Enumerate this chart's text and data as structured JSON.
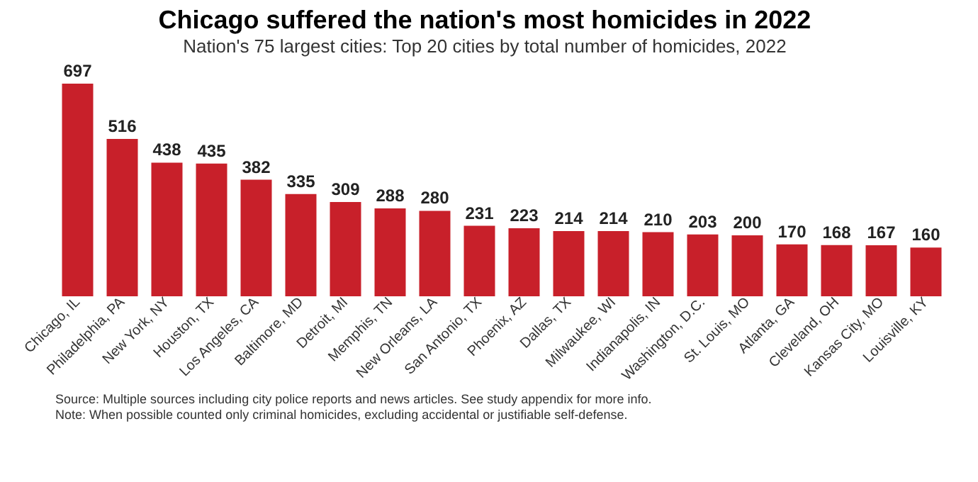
{
  "chart_data": {
    "type": "bar",
    "title": "Chicago suffered the nation's most homicides in 2022",
    "subtitle": "Nation's 75 largest cities: Top 20 cities by total number of homicides, 2022",
    "categories": [
      "Chicago, IL",
      "Philadelphia, PA",
      "New York, NY",
      "Houston, TX",
      "Los Angeles, CA",
      "Baltimore, MD",
      "Detroit, MI",
      "Memphis, TN",
      "New Orleans, LA",
      "San Antonio, TX",
      "Phoenix, AZ",
      "Dallas, TX",
      "Milwaukee, WI",
      "Indianapolis, IN",
      "Washington, D.C.",
      "St. Louis, MO",
      "Atlanta, GA",
      "Cleveland, OH",
      "Kansas City, MO",
      "Louisville, KY"
    ],
    "values": [
      697,
      516,
      438,
      435,
      382,
      335,
      309,
      288,
      280,
      231,
      223,
      214,
      214,
      210,
      203,
      200,
      170,
      168,
      167,
      160
    ],
    "color": "#c8202a",
    "data_labels": true,
    "grid": false,
    "annotations": [
      "Source: Multiple sources including city police reports and news articles. See study appendix for more info.",
      "Note: When possible counted only criminal homicides, excluding accidental or justifiable self-defense."
    ]
  }
}
